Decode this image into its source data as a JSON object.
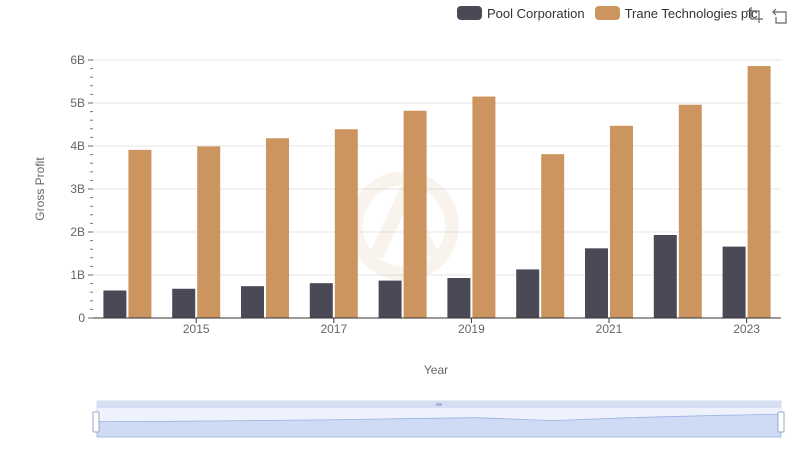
{
  "legend": {
    "items": [
      {
        "label": "Pool Corporation",
        "color": "#4a4a56"
      },
      {
        "label": "Trane Technologies plc",
        "color": "#cc9560"
      }
    ]
  },
  "toolbox": {
    "icons": [
      "zoom-select-icon",
      "zoom-reset-icon"
    ]
  },
  "chart_data": {
    "type": "bar",
    "categories": [
      "2014",
      "2015",
      "2016",
      "2017",
      "2018",
      "2019",
      "2020",
      "2021",
      "2022",
      "2023"
    ],
    "x_tick_labels": [
      "2015",
      "2017",
      "2019",
      "2021",
      "2023"
    ],
    "series": [
      {
        "name": "Pool Corporation",
        "color": "#4a4a56",
        "values": [
          0.64,
          0.68,
          0.74,
          0.81,
          0.87,
          0.93,
          1.13,
          1.62,
          1.93,
          1.66
        ]
      },
      {
        "name": "Trane Technologies plc",
        "color": "#cc9560",
        "values": [
          3.91,
          3.99,
          4.18,
          4.39,
          4.82,
          5.15,
          3.81,
          4.47,
          4.96,
          5.86
        ]
      }
    ],
    "unit": "B",
    "ylim": [
      0,
      6
    ],
    "y_ticks": [
      0,
      1,
      2,
      3,
      4,
      5,
      6
    ],
    "y_tick_labels": [
      "0",
      "1B",
      "2B",
      "3B",
      "4B",
      "5B",
      "6B"
    ],
    "xlabel": "Year",
    "ylabel": "Gross Profit",
    "grid": true,
    "legend_position": "top-right",
    "slider_range": [
      0,
      100
    ]
  }
}
